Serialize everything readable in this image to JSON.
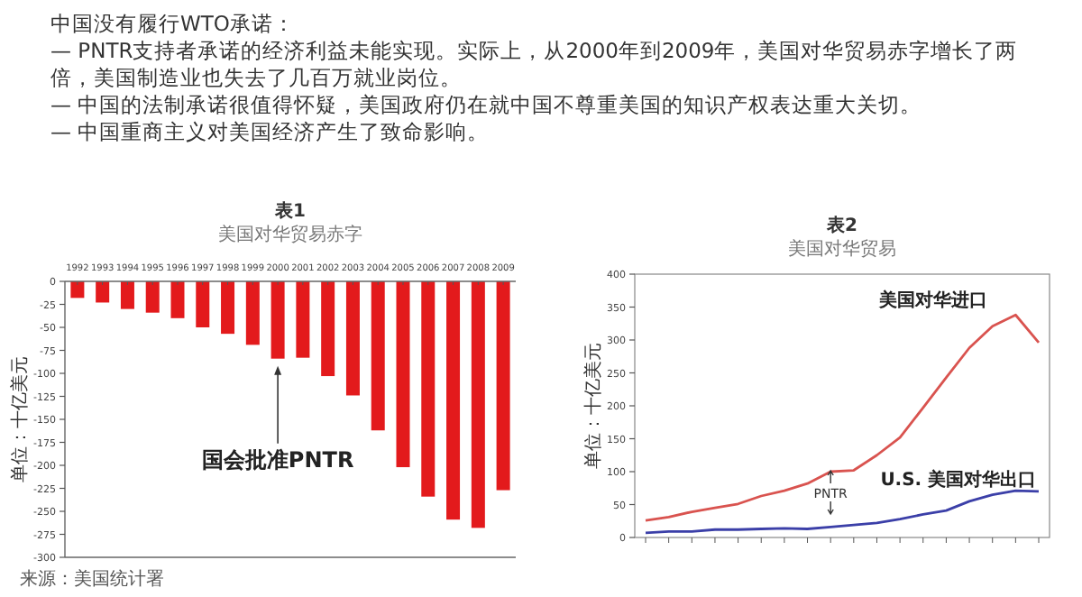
{
  "chart_data": [
    {
      "type": "other",
      "title": "中国没有履行WTO承诺：",
      "annotations": [
        "— PNTR支持者承诺的经济利益未能实现。实际上，从2000年到2009年，美国对华贸易赤字增长了两倍，美国制造业也失去了几百万就业岗位。",
        "— 中国的法制承诺很值得怀疑，美国政府仍在就中国不尊重美国的知识产权表达重大关切。",
        "—  中国重商主义对美国经济产生了致命影响。"
      ]
    },
    {
      "type": "bar",
      "title": "表1",
      "subtitle": "美国对华贸易赤字",
      "ylabel": "单位：十亿美元",
      "categories": [
        "1992",
        "1993",
        "1994",
        "1995",
        "1996",
        "1997",
        "1998",
        "1999",
        "2000",
        "2001",
        "2002",
        "2003",
        "2004",
        "2005",
        "2006",
        "2007",
        "2008",
        "2009"
      ],
      "values": [
        -18,
        -23,
        -30,
        -34,
        -40,
        -50,
        -57,
        -69,
        -84,
        -83,
        -103,
        -124,
        -162,
        -202,
        -234,
        -259,
        -268,
        -227
      ],
      "color": "#e31a1c",
      "ylim": [
        -300,
        0
      ],
      "yticks": [
        0,
        -25,
        -50,
        -75,
        -100,
        -125,
        -150,
        -175,
        -200,
        -225,
        -250,
        -275,
        -300
      ],
      "annotations": [
        {
          "text": "国会批准PNTR",
          "x": "2000",
          "y": -84
        },
        "来源：美国统计署"
      ]
    },
    {
      "type": "line",
      "title": "表2",
      "subtitle": "美国对华贸易",
      "ylabel": "单位：十亿美元",
      "categories": [
        null,
        null,
        null,
        null,
        null,
        null,
        null,
        null,
        null,
        null,
        null,
        null,
        null,
        null,
        null,
        null,
        null,
        null
      ],
      "series": [
        {
          "name": "美国对华进口",
          "color": "#d9534f",
          "values": [
            26,
            31,
            39,
            45,
            51,
            63,
            71,
            82,
            100,
            102,
            125,
            152,
            197,
            243,
            288,
            321,
            338,
            296
          ]
        },
        {
          "name": "U.S. 美国对华出口",
          "color": "#3b3fa8",
          "values": [
            7,
            9,
            9,
            12,
            12,
            13,
            14,
            13,
            16,
            19,
            22,
            28,
            35,
            41,
            55,
            65,
            71,
            70
          ]
        }
      ],
      "ylim": [
        0,
        400
      ],
      "yticks": [
        0,
        50,
        100,
        150,
        200,
        250,
        300,
        350,
        400
      ],
      "annotations": [
        "PNTR"
      ]
    }
  ]
}
